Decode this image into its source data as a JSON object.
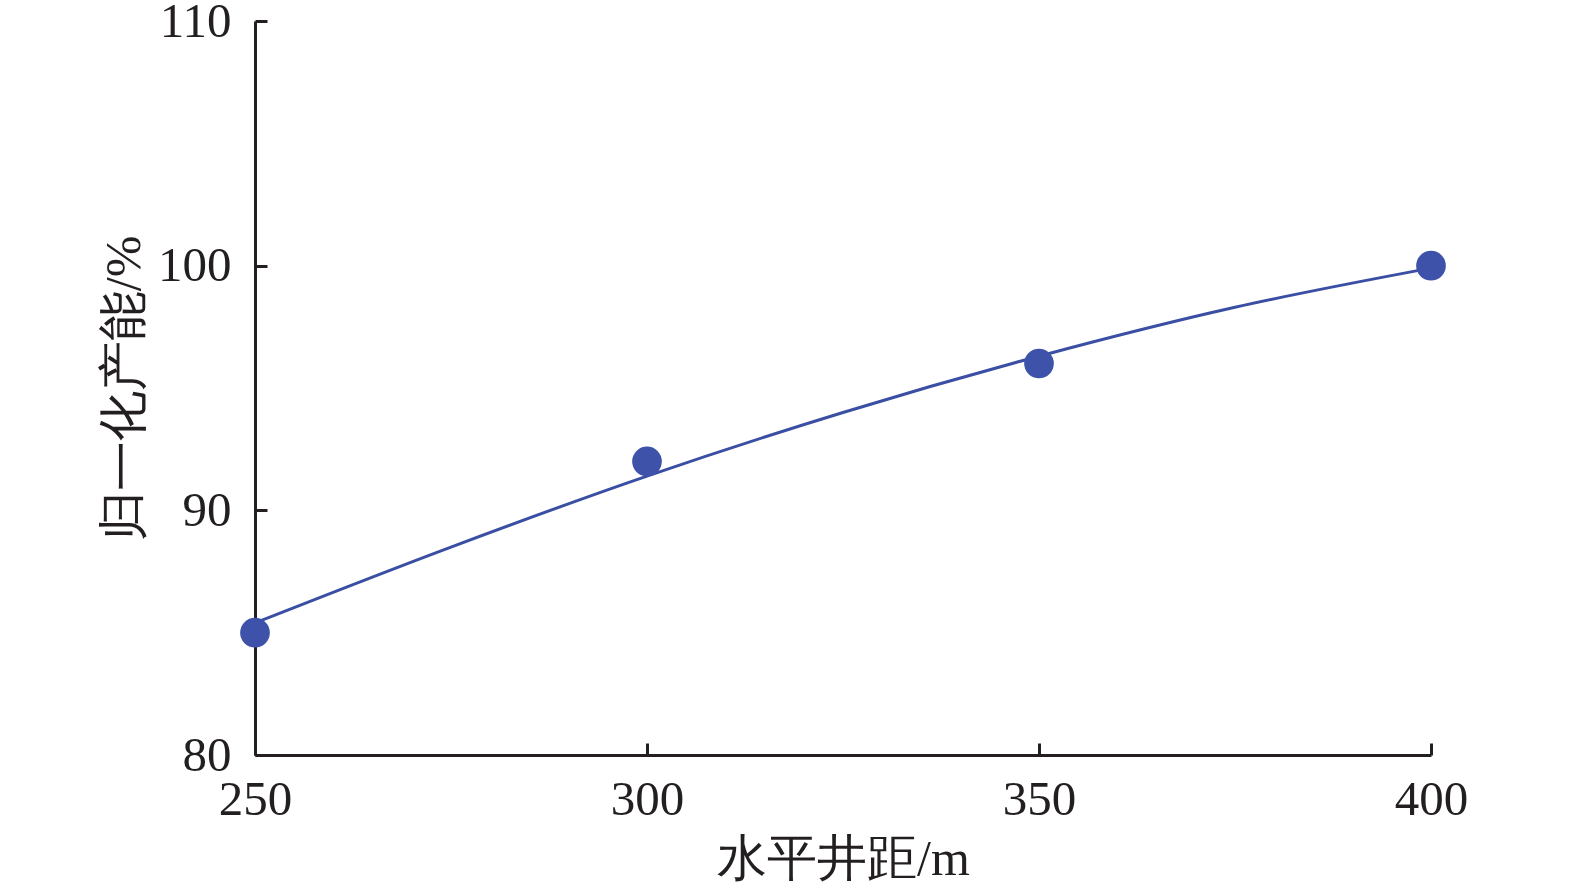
{
  "chart_data": {
    "type": "scatter",
    "xlabel": "水平井距/m",
    "ylabel": "归一化产能/%",
    "xlim": [
      250,
      400
    ],
    "ylim": [
      80,
      110
    ],
    "xticks": [
      250,
      300,
      350,
      400
    ],
    "yticks": [
      80,
      90,
      100,
      110
    ],
    "grid": false,
    "series": [
      {
        "type": "line",
        "color": "#3a4fa3",
        "x": [
          250,
          275,
          300,
          325,
          350,
          375,
          400
        ],
        "values": [
          85.4,
          88.5,
          91.4,
          94.0,
          96.3,
          98.3,
          99.9
        ]
      },
      {
        "color": "#3d52a8",
        "x": [
          250,
          300,
          350,
          400
        ],
        "values": [
          85,
          92,
          96,
          100
        ],
        "marker": "circle"
      }
    ]
  }
}
